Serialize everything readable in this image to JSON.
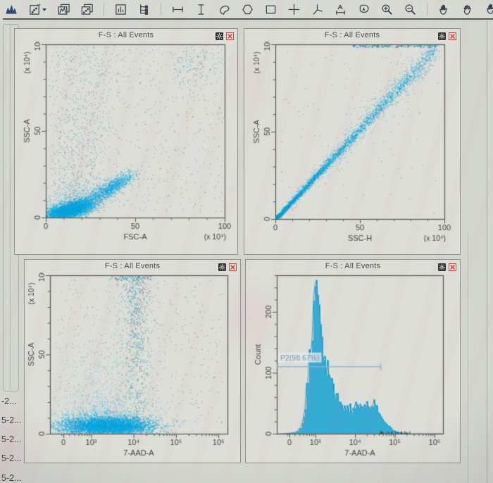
{
  "window": {
    "background": "#d3d6cf",
    "panel_background": "#dcded7",
    "accent_cyan": "#00a5e0",
    "dark_point": "#46525c",
    "frame_color": "#4f544e",
    "text_color": "#3e433f"
  },
  "toolbar": {
    "icons": [
      {
        "name": "histogram-plot-icon"
      },
      {
        "name": "dot-plot-icon",
        "dropdown": true
      },
      {
        "name": "overlay-histogram-icon"
      },
      {
        "name": "overlay-dot-plot-icon"
      },
      {
        "name": "separator"
      },
      {
        "name": "statistics-icon"
      },
      {
        "name": "gating-hierarchy-icon"
      },
      {
        "name": "separator"
      },
      {
        "name": "horizontal-interval-gate-icon"
      },
      {
        "name": "vertical-interval-gate-icon"
      },
      {
        "name": "lasso-gate-icon"
      },
      {
        "name": "polygon-gate-icon"
      },
      {
        "name": "rectangle-gate-icon"
      },
      {
        "name": "quadrant-gate-icon"
      },
      {
        "name": "angled-quadrant-gate-icon"
      },
      {
        "name": "text-label-icon"
      },
      {
        "name": "auto-gate-icon"
      },
      {
        "name": "zoom-in-icon"
      },
      {
        "name": "zoom-out-icon"
      },
      {
        "name": "separator"
      },
      {
        "name": "pan-hand-icon"
      },
      {
        "name": "grab-hand-icon"
      }
    ],
    "edge_icon": {
      "name": "hand-tool-partial-icon"
    }
  },
  "sidebar": {
    "items": [
      {
        "label": "-2..."
      },
      {
        "label": "5-2..."
      },
      {
        "label": "5-2..."
      },
      {
        "label": "5-2..."
      },
      {
        "label": "5-2..."
      }
    ]
  },
  "panel_common": {
    "gear_icon": "plot-settings",
    "close_icon": "close-plot"
  },
  "chart_data": [
    {
      "id": "dot-plot-fsc-ssc",
      "type": "scatter",
      "title": "F-S : All Events",
      "xlabel": "FSC-A",
      "ylabel": "SSC-A",
      "x_unit": "(x 10⁴)",
      "y_unit": "(x 10⁴)",
      "xlim": [
        0,
        100
      ],
      "ylim": [
        0,
        100
      ],
      "x_ticks": [
        0,
        50,
        100
      ],
      "y_ticks": [
        0,
        50,
        100
      ],
      "minor_step": 10,
      "clusters": [
        {
          "name": "debris-core",
          "kind": "gauss",
          "cx": 13,
          "cy": 4.5,
          "sx": 6.5,
          "sy": 2.6,
          "rho": 0.55,
          "n": 3000,
          "color": "cyan",
          "alpha": 0.5,
          "size": 1.6
        },
        {
          "name": "debris-halo",
          "kind": "gauss",
          "cx": 16,
          "cy": 8,
          "sx": 10,
          "sy": 5.5,
          "rho": 0.45,
          "n": 900,
          "color": "cyan",
          "alpha": 0.3,
          "size": 1.3
        },
        {
          "name": "cell-cluster",
          "kind": "gauss",
          "cx": 37,
          "cy": 18,
          "sx": 6,
          "sy": 4,
          "rho": 0.8,
          "n": 850,
          "color": "cyan",
          "alpha": 0.45,
          "size": 1.5
        },
        {
          "name": "bridge",
          "kind": "gauss",
          "cx": 27,
          "cy": 11.5,
          "sx": 7,
          "sy": 4,
          "rho": 0.85,
          "n": 520,
          "color": "cyan",
          "alpha": 0.35,
          "size": 1.3
        },
        {
          "name": "plume",
          "kind": "plume",
          "cx": 14,
          "sx": 5.5,
          "drift": 0.1,
          "spread_gain": 0.08,
          "ymin": 8,
          "ymax": 100,
          "ypow": 1.3,
          "n": 820,
          "color": "mix",
          "alpha": 0.45,
          "size": 1.2
        },
        {
          "name": "upper-right-cloud",
          "kind": "gauss",
          "cx": 84,
          "cy": 88,
          "sx": 8,
          "sy": 7,
          "rho": 0.2,
          "n": 150,
          "color": "mix",
          "alpha": 0.55,
          "size": 1.2
        },
        {
          "name": "scatter-noise",
          "kind": "uniform",
          "x0": 2,
          "x1": 99,
          "y0": 3,
          "y1": 99,
          "n": 520,
          "color": "dark",
          "alpha": 0.5,
          "size": 1.1
        },
        {
          "name": "scatter-noise-cyan",
          "kind": "uniform",
          "x0": 5,
          "x1": 96,
          "y0": 5,
          "y1": 99,
          "n": 170,
          "color": "cyan",
          "alpha": 0.4,
          "size": 1.2
        }
      ]
    },
    {
      "id": "dot-plot-ssch-ssca",
      "type": "scatter",
      "title": "F-S : All Events",
      "xlabel": "SSC-H",
      "ylabel": "SSC-A",
      "x_unit": "(x 10⁴)",
      "y_unit": "(x 10⁴)",
      "xlim": [
        0,
        100
      ],
      "ylim": [
        0,
        100
      ],
      "x_ticks": [
        0,
        50,
        100
      ],
      "y_ticks": [
        0,
        50,
        100
      ],
      "minor_step": 10,
      "clusters": [
        {
          "name": "diagonal-core",
          "kind": "diag",
          "n": 2600,
          "t_pow": 3.0,
          "x_max": 95,
          "slope": 1.03,
          "base_spread": 0.5,
          "spread_gain": 2.5,
          "color": "cyan",
          "alpha": 0.5,
          "size": 1.6
        },
        {
          "name": "diagonal-mid",
          "kind": "diag",
          "n": 1200,
          "t_pow": 1.6,
          "x_max": 95,
          "slope": 1.03,
          "base_spread": 0.8,
          "spread_gain": 4.0,
          "color": "cyan",
          "alpha": 0.4,
          "size": 1.3
        },
        {
          "name": "diagonal-halo",
          "kind": "diag",
          "n": 500,
          "t_pow": 1.1,
          "x_max": 95,
          "slope": 1.05,
          "base_spread": 1.5,
          "spread_gain": 7.0,
          "color": "mix",
          "alpha": 0.4,
          "size": 1.2
        },
        {
          "name": "top-clip",
          "kind": "uniform",
          "x0": 45,
          "x1": 96,
          "y0": 98.6,
          "y1": 100,
          "n": 210,
          "color": "mix",
          "alpha": 0.6,
          "size": 1.4
        },
        {
          "name": "noise",
          "kind": "uniform",
          "x0": 3,
          "x1": 97,
          "y0": 3,
          "y1": 97,
          "n": 90,
          "color": "dark",
          "alpha": 0.5,
          "size": 1.1
        }
      ]
    },
    {
      "id": "dot-plot-7aad-ssca",
      "type": "scatter",
      "title": "F-S : All Events",
      "xlabel": "7-AAD-A",
      "ylabel": "SSC-A",
      "x_axis": "log",
      "x_majors": [
        {
          "label": "0",
          "u": 0.076
        },
        {
          "label": "10³",
          "u": 0.232
        },
        {
          "label": "10⁴",
          "u": 0.471
        },
        {
          "label": "10⁵",
          "u": 0.71
        },
        {
          "label": "10⁶",
          "u": 0.949
        }
      ],
      "y_unit": "(x 10⁴)",
      "ylim": [
        0,
        100
      ],
      "y_ticks": [
        0,
        50,
        100
      ],
      "minor_step": 10,
      "clusters": [
        {
          "name": "negative-core",
          "kind": "gaussU",
          "ux": 0.32,
          "sux": 0.125,
          "cy": 5,
          "sy": 3,
          "n": 4200,
          "color": "cyan",
          "alpha": 0.5,
          "size": 1.6
        },
        {
          "name": "negative-halo",
          "kind": "gaussU",
          "ux": 0.3,
          "sux": 0.15,
          "cy": 10,
          "sy": 8,
          "n": 1400,
          "color": "cyan",
          "alpha": 0.3,
          "size": 1.3
        },
        {
          "name": "upper-halo",
          "kind": "gaussU",
          "ux": 0.27,
          "sux": 0.11,
          "cy": 32,
          "sy": 14,
          "n": 450,
          "color": "cyan",
          "alpha": 0.3,
          "size": 1.2
        },
        {
          "name": "positive-band",
          "kind": "bandU",
          "ux": 0.485,
          "sux": 0.038,
          "ymin": 10,
          "ymax": 100,
          "ypow": 0.7,
          "n": 620,
          "color": "mix",
          "alpha": 0.5,
          "size": 1.3
        },
        {
          "name": "band-halo",
          "kind": "bandU",
          "ux": 0.46,
          "sux": 0.09,
          "ymin": 5,
          "ymax": 100,
          "ypow": 1.0,
          "n": 320,
          "color": "mix",
          "alpha": 0.4,
          "size": 1.2
        },
        {
          "name": "top-edge",
          "kind": "uniformU",
          "u0": 0.33,
          "u1": 0.58,
          "y0": 97,
          "y1": 100,
          "n": 70,
          "color": "mix",
          "alpha": 0.6,
          "size": 1.4
        },
        {
          "name": "right-noise",
          "kind": "uniformU",
          "u0": 0.45,
          "u1": 0.97,
          "y0": 2,
          "y1": 98,
          "n": 240,
          "color": "dark",
          "alpha": 0.5,
          "size": 1.1
        },
        {
          "name": "left-noise",
          "kind": "uniformU",
          "u0": 0.03,
          "u1": 0.45,
          "y0": 20,
          "y1": 98,
          "n": 160,
          "color": "dark",
          "alpha": 0.45,
          "size": 1.1
        }
      ]
    },
    {
      "id": "histogram-7aad-count",
      "type": "histogram",
      "title": "F-S : All Events",
      "xlabel": "7-AAD-A",
      "ylabel": "Count",
      "x_axis": "log",
      "x_majors": [
        {
          "label": "0",
          "u": 0.076
        },
        {
          "label": "10³",
          "u": 0.232
        },
        {
          "label": "10⁴",
          "u": 0.471
        },
        {
          "label": "10⁵",
          "u": 0.71
        },
        {
          "label": "10⁶",
          "u": 0.949
        }
      ],
      "ylim": [
        0,
        260
      ],
      "y_ticks": [
        0,
        100,
        200
      ],
      "y_minor_step": 20,
      "profile": [
        [
          0.03,
          0
        ],
        [
          0.08,
          1
        ],
        [
          0.11,
          2
        ],
        [
          0.13,
          5
        ],
        [
          0.15,
          14
        ],
        [
          0.165,
          35
        ],
        [
          0.18,
          75
        ],
        [
          0.195,
          130
        ],
        [
          0.21,
          180
        ],
        [
          0.225,
          222
        ],
        [
          0.235,
          235
        ],
        [
          0.245,
          225
        ],
        [
          0.255,
          200
        ],
        [
          0.27,
          168
        ],
        [
          0.285,
          138
        ],
        [
          0.3,
          108
        ],
        [
          0.315,
          90
        ],
        [
          0.33,
          78
        ],
        [
          0.35,
          66
        ],
        [
          0.37,
          57
        ],
        [
          0.39,
          50
        ],
        [
          0.42,
          44
        ],
        [
          0.45,
          40
        ],
        [
          0.47,
          50
        ],
        [
          0.49,
          42
        ],
        [
          0.51,
          48
        ],
        [
          0.53,
          40
        ],
        [
          0.55,
          47
        ],
        [
          0.57,
          52
        ],
        [
          0.59,
          45
        ],
        [
          0.61,
          40
        ],
        [
          0.63,
          32
        ],
        [
          0.65,
          22
        ],
        [
          0.67,
          14
        ],
        [
          0.69,
          8
        ],
        [
          0.71,
          4
        ],
        [
          0.735,
          2
        ],
        [
          0.76,
          1
        ],
        [
          0.8,
          0
        ],
        [
          1,
          0
        ]
      ],
      "noise": 0.22,
      "baseline_specks": {
        "u0": 0.62,
        "u1": 0.8,
        "n": 26
      },
      "gate": {
        "label": "P2(98.67%)",
        "count": 110,
        "u_from": 0.004,
        "u_to": 0.625
      },
      "colors": {
        "fill": "#2ba9d4",
        "edge": "#1590ba",
        "gate": "#8fb3cf",
        "gate_text": "#7096b6"
      }
    }
  ]
}
